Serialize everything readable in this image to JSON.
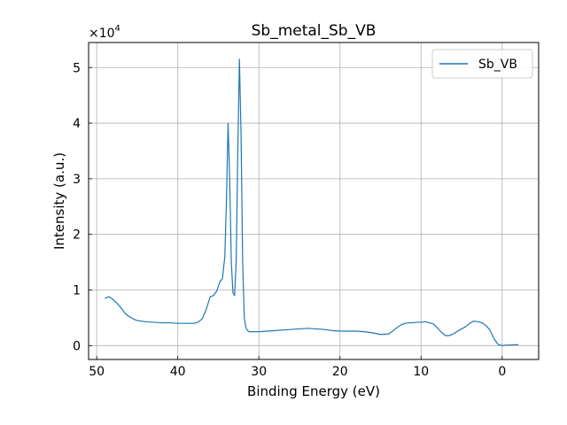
{
  "chart_data": {
    "type": "line",
    "title": "Sb_metal_Sb_VB",
    "xlabel": "Binding Energy (eV)",
    "ylabel": "Intensity (a.u.)",
    "y_multiplier_label": "×10",
    "y_multiplier_exponent": "4",
    "x_reversed": true,
    "xlim": [
      51,
      -4.5
    ],
    "ylim": [
      -2500,
      54500
    ],
    "x_ticks": [
      50,
      40,
      30,
      20,
      10,
      0
    ],
    "x_tick_labels": [
      "50",
      "40",
      "30",
      "20",
      "10",
      "0"
    ],
    "y_ticks": [
      0,
      10000,
      20000,
      30000,
      40000,
      50000
    ],
    "y_tick_labels": [
      "0",
      "1",
      "2",
      "3",
      "4",
      "5"
    ],
    "grid": true,
    "legend_position": "top-right",
    "series": [
      {
        "name": "Sb_VB",
        "color": "#1f77b4",
        "x": [
          49,
          48.5,
          48,
          47.5,
          47,
          46.5,
          46,
          45.5,
          45,
          44,
          43,
          42,
          41,
          40,
          39,
          38,
          37.5,
          37,
          36.5,
          36,
          35.6,
          35.2,
          34.8,
          34.5,
          34.2,
          34,
          33.8,
          33.6,
          33.4,
          33.2,
          33,
          32.8,
          32.6,
          32.4,
          32.2,
          32,
          31.8,
          31.6,
          31.4,
          31.2,
          31,
          30.5,
          30,
          29,
          28,
          27,
          26,
          25,
          24,
          23,
          22,
          21,
          20,
          19,
          18,
          17,
          16,
          15,
          14,
          13.5,
          13,
          12.5,
          12,
          11.5,
          11,
          10.5,
          10,
          9.5,
          9,
          8.5,
          8,
          7.5,
          7,
          6.5,
          6,
          5.5,
          5,
          4.5,
          4,
          3.5,
          3,
          2.5,
          2,
          1.5,
          1,
          0.5,
          0,
          -0.5,
          -1,
          -1.5,
          -2
        ],
        "values": [
          8500,
          8800,
          8300,
          7600,
          6800,
          5800,
          5200,
          4800,
          4500,
          4300,
          4200,
          4100,
          4100,
          4000,
          4000,
          4000,
          4200,
          4800,
          6500,
          8800,
          9000,
          9800,
          11500,
          12000,
          16000,
          26000,
          40000,
          30000,
          15000,
          9500,
          9000,
          15000,
          35000,
          51500,
          38000,
          15000,
          5000,
          3200,
          2700,
          2500,
          2500,
          2500,
          2500,
          2600,
          2700,
          2800,
          2900,
          3000,
          3100,
          3000,
          2900,
          2700,
          2600,
          2600,
          2600,
          2500,
          2300,
          2000,
          2100,
          2600,
          3200,
          3700,
          4000,
          4100,
          4100,
          4200,
          4200,
          4300,
          4100,
          3900,
          3200,
          2400,
          1800,
          1800,
          2100,
          2600,
          3000,
          3400,
          4000,
          4400,
          4300,
          4100,
          3600,
          2800,
          1200,
          200,
          0,
          100,
          100,
          150,
          150
        ]
      }
    ]
  }
}
